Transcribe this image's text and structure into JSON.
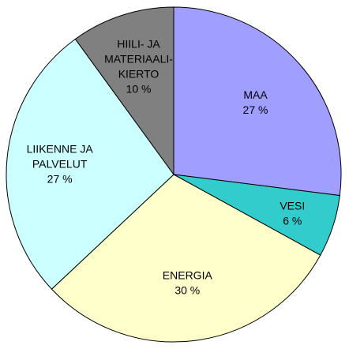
{
  "chart_data": {
    "type": "pie",
    "title": "",
    "start_angle_deg": 90,
    "direction": "clockwise",
    "slices": [
      {
        "label_lines": [
          "MAA",
          "27 %"
        ],
        "value": 27,
        "color": "#A09EFF"
      },
      {
        "label_lines": [
          "VESI",
          "6 %"
        ],
        "value": 6,
        "color": "#33CCCC"
      },
      {
        "label_lines": [
          "ENERGIA",
          "30 %"
        ],
        "value": 30,
        "color": "#FFFFCC"
      },
      {
        "label_lines": [
          "LIIKENNE JA",
          "PALVELUT",
          "27 %"
        ],
        "value": 27,
        "color": "#CCFFFF"
      },
      {
        "label_lines": [
          "HIILI- JA",
          "MATERIAALI-",
          "KIERTO",
          "10 %"
        ],
        "value": 10,
        "color": "#808080"
      }
    ]
  }
}
